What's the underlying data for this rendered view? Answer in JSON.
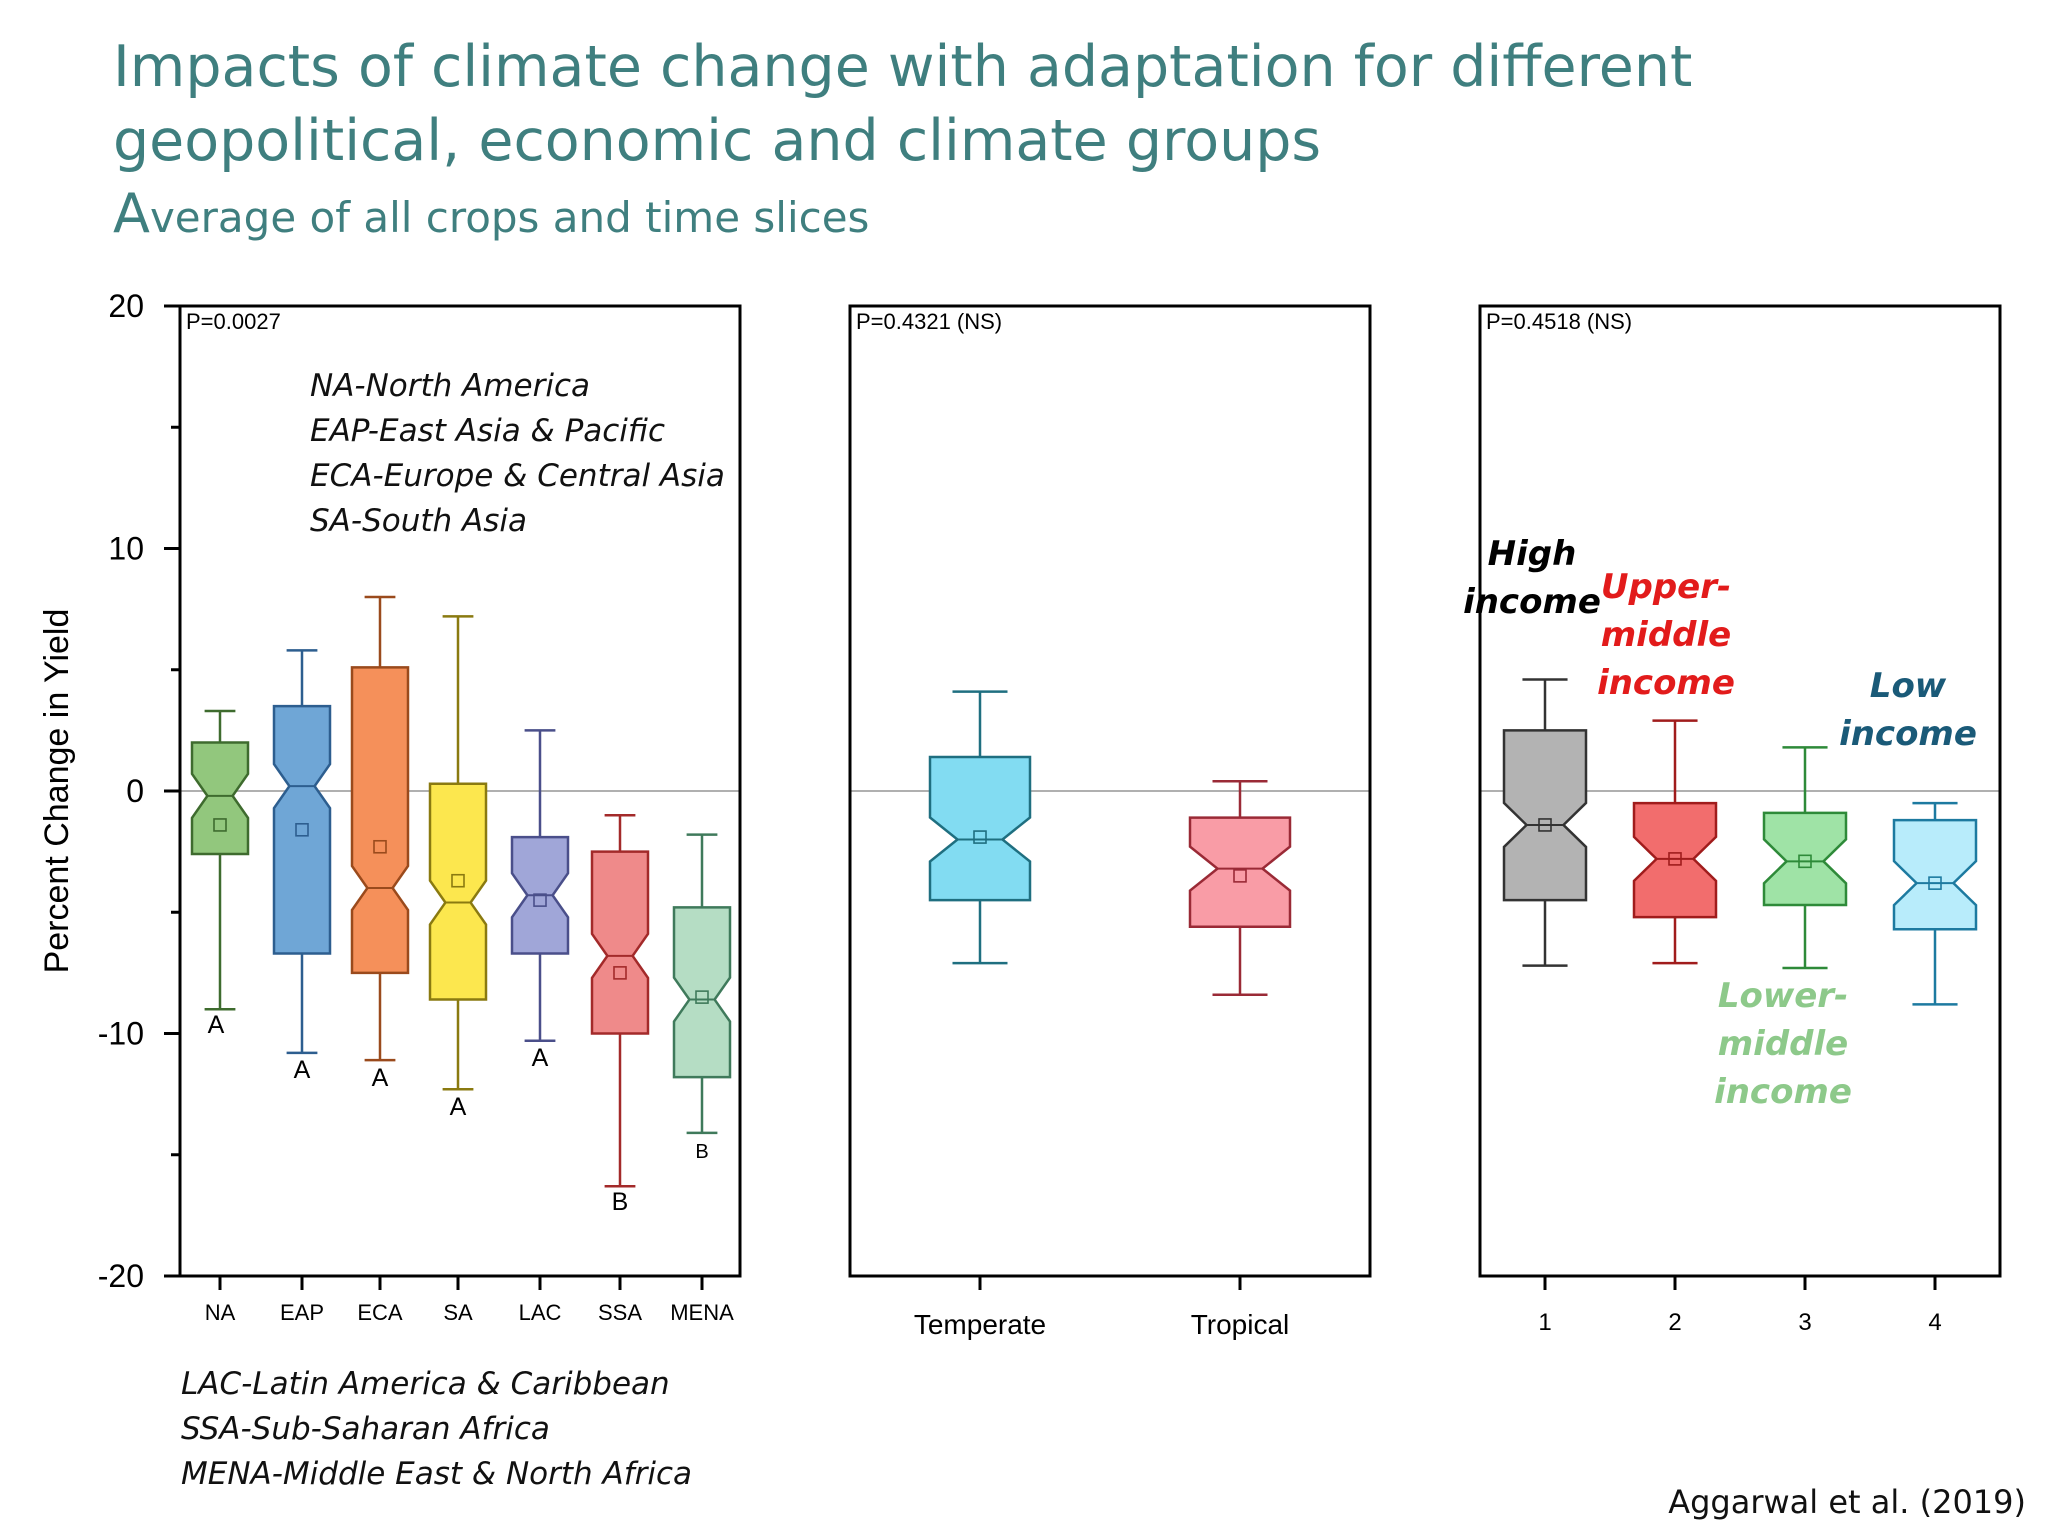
{
  "title_line1": "Impacts of climate change with adaptation for different",
  "title_line2": "geopolitical, economic and climate groups",
  "subtitle_first": "A",
  "subtitle_rest": "verage of all crops and time slices",
  "citation": "Aggarwal et al. (2019)",
  "region_legend_top": [
    "NA-North America",
    "EAP-East Asia & Pacific",
    "ECA-Europe & Central Asia",
    "SA-South Asia"
  ],
  "region_legend_bottom": [
    "LAC-Latin America & Caribbean",
    "SSA-Sub-Saharan Africa",
    "MENA-Middle East & North Africa"
  ],
  "chart_data": [
    {
      "type": "boxplot",
      "panel": "regions",
      "ylabel": "Percent Change in Yield",
      "ylim": [
        -20,
        20
      ],
      "yticks": [
        -20,
        -10,
        0,
        10,
        20
      ],
      "p_value": "P=0.0027",
      "categories": [
        "NA",
        "EAP",
        "ECA",
        "SA",
        "LAC",
        "SSA",
        "MENA"
      ],
      "boxes": [
        {
          "label": "NA",
          "whisker_low": -9.0,
          "q1": -2.6,
          "median": -0.2,
          "q3": 2.0,
          "whisker_high": 3.3,
          "mean": -1.4,
          "group": "A",
          "color": "#92c77d",
          "stroke": "#3e6b2e"
        },
        {
          "label": "EAP",
          "whisker_low": -10.8,
          "q1": -6.7,
          "median": 0.2,
          "q3": 3.5,
          "whisker_high": 5.8,
          "mean": -1.6,
          "group": "A",
          "color": "#6fa6d6",
          "stroke": "#2d5e8f"
        },
        {
          "label": "ECA",
          "whisker_low": -11.1,
          "q1": -7.5,
          "median": -4.0,
          "q3": 5.1,
          "whisker_high": 8.0,
          "mean": -2.3,
          "group": "A",
          "color": "#f5905a",
          "stroke": "#9a4a1c"
        },
        {
          "label": "SA",
          "whisker_low": -12.3,
          "q1": -8.6,
          "median": -4.6,
          "q3": 0.3,
          "whisker_high": 7.2,
          "mean": -3.7,
          "group": "A",
          "color": "#fce74e",
          "stroke": "#8a7a10"
        },
        {
          "label": "LAC",
          "whisker_low": -10.3,
          "q1": -6.7,
          "median": -4.3,
          "q3": -1.9,
          "whisker_high": 2.5,
          "mean": -4.5,
          "group": "A",
          "color": "#a0a6d8",
          "stroke": "#4a4f8a"
        },
        {
          "label": "SSA",
          "whisker_low": -16.3,
          "q1": -10.0,
          "median": -6.8,
          "q3": -2.5,
          "whisker_high": -1.0,
          "mean": -7.5,
          "group": "B",
          "color": "#ef8a8a",
          "stroke": "#a32a2a"
        },
        {
          "label": "MENA",
          "whisker_low": -14.1,
          "q1": -11.8,
          "median": -8.6,
          "q3": -4.8,
          "whisker_high": -1.8,
          "mean": -8.5,
          "group": "B",
          "color": "#b5ddc4",
          "stroke": "#3f7a5b"
        }
      ]
    },
    {
      "type": "boxplot",
      "panel": "climate",
      "ylim": [
        -20,
        20
      ],
      "p_value": "P=0.4321 (NS)",
      "categories": [
        "Temperate",
        "Tropical"
      ],
      "boxes": [
        {
          "label": "Temperate",
          "whisker_low": -7.1,
          "q1": -4.5,
          "median": -2.0,
          "q3": 1.4,
          "whisker_high": 4.1,
          "mean": -1.9,
          "color": "#82dcf2",
          "stroke": "#1f6f80"
        },
        {
          "label": "Tropical",
          "whisker_low": -8.4,
          "q1": -5.6,
          "median": -3.2,
          "q3": -1.1,
          "whisker_high": 0.4,
          "mean": -3.5,
          "color": "#f99ca6",
          "stroke": "#9a2a36"
        }
      ]
    },
    {
      "type": "boxplot",
      "panel": "income",
      "ylim": [
        -20,
        20
      ],
      "p_value": "P=0.4518 (NS)",
      "categories": [
        "1",
        "2",
        "3",
        "4"
      ],
      "boxes": [
        {
          "label": "1",
          "whisker_low": -7.2,
          "q1": -4.5,
          "median": -1.4,
          "q3": 2.5,
          "whisker_high": 4.6,
          "mean": -1.4,
          "color": "#b3b3b3",
          "stroke": "#333333"
        },
        {
          "label": "2",
          "whisker_low": -7.1,
          "q1": -5.2,
          "median": -2.8,
          "q3": -0.5,
          "whisker_high": 2.9,
          "mean": -2.8,
          "color": "#f26d6d",
          "stroke": "#a01c1c"
        },
        {
          "label": "3",
          "whisker_low": -7.3,
          "q1": -4.7,
          "median": -2.9,
          "q3": -0.9,
          "whisker_high": 1.8,
          "mean": -2.9,
          "color": "#9fe3a6",
          "stroke": "#2e8a39"
        },
        {
          "label": "4",
          "whisker_low": -8.8,
          "q1": -5.7,
          "median": -3.8,
          "q3": -1.2,
          "whisker_high": -0.5,
          "mean": -3.8,
          "color": "#b8ecfb",
          "stroke": "#1d7aa0"
        }
      ],
      "annotations": [
        {
          "lines": [
            "High",
            "income"
          ],
          "color": "#000000"
        },
        {
          "lines": [
            "Upper-",
            "middle",
            "income"
          ],
          "color": "#e21b1b"
        },
        {
          "lines": [
            "Lower-",
            "middle",
            "income"
          ],
          "color": "#8dc98a"
        },
        {
          "lines": [
            "Low",
            "income"
          ],
          "color": "#1a5a78"
        }
      ]
    }
  ]
}
